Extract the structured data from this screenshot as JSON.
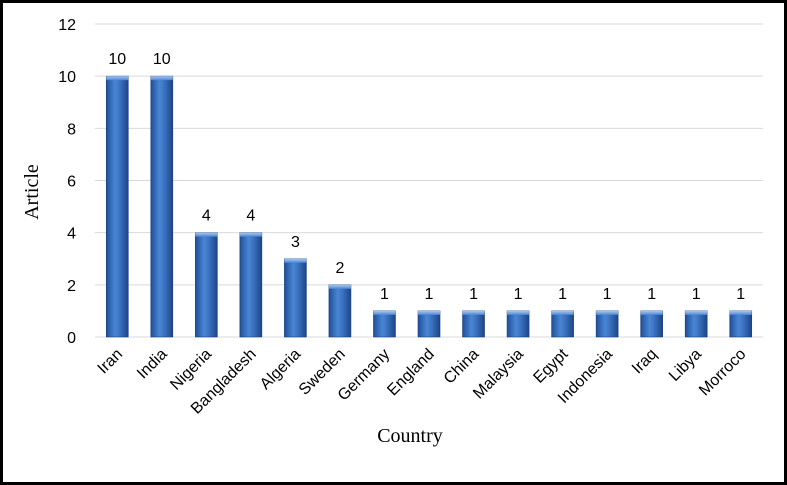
{
  "chart_data": {
    "type": "bar",
    "title": "",
    "xlabel": "Country",
    "ylabel": "Article",
    "categories": [
      "Iran",
      "India",
      "Nigeria",
      "Bangladesh",
      "Algeria",
      "Sweden",
      "Germany",
      "England",
      "China",
      "Malaysia",
      "Egypt",
      "Indonesia",
      "Iraq",
      "Libya",
      "Morroco"
    ],
    "values": [
      10,
      10,
      4,
      4,
      3,
      2,
      1,
      1,
      1,
      1,
      1,
      1,
      1,
      1,
      1
    ],
    "ylim": [
      0,
      12
    ],
    "yticks": [
      0,
      2,
      4,
      6,
      8,
      10,
      12
    ],
    "grid": true,
    "data_labels": true,
    "bar_color": "#2e63b4",
    "legend": "none"
  }
}
